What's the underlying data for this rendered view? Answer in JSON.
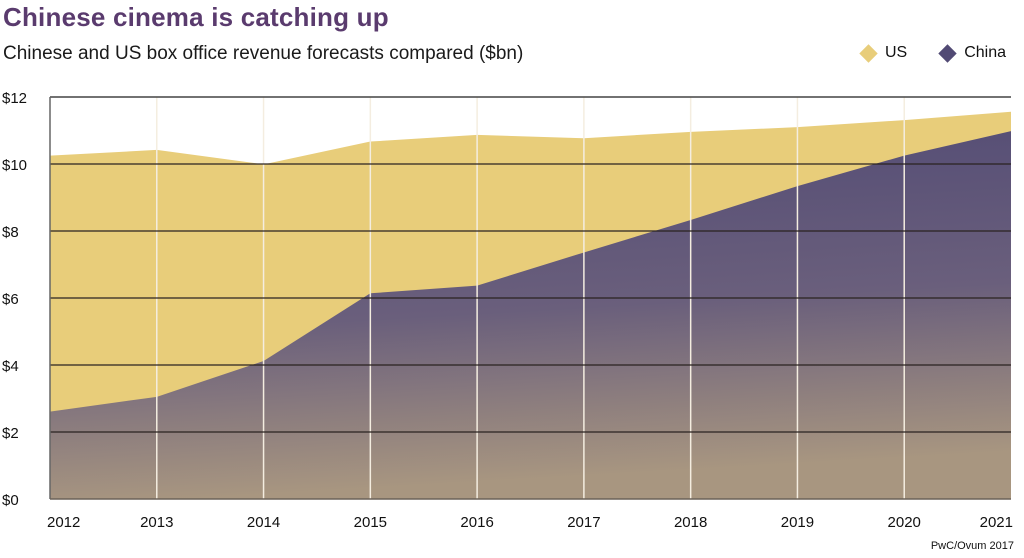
{
  "header": {
    "title": "Chinese cinema is catching up",
    "subtitle": "Chinese and US box office revenue forecasts compared ($bn)"
  },
  "legend": [
    {
      "label": "US",
      "color": "#e8cd7a",
      "icon": "diamond-icon"
    },
    {
      "label": "China",
      "color": "#514a74",
      "icon": "diamond-icon"
    }
  ],
  "source": "PwC/Ovum 2017",
  "chart_data": {
    "type": "area",
    "title": "Chinese cinema is catching up",
    "subtitle": "Chinese and US box office revenue forecasts compared ($bn)",
    "xlabel": "",
    "ylabel": "",
    "x": [
      "2012",
      "2013",
      "2014",
      "2015",
      "2016",
      "2017",
      "2018",
      "2019",
      "2020",
      "2021"
    ],
    "series": [
      {
        "name": "US",
        "color": "#e8cd7a",
        "values": [
          10.25,
          10.42,
          9.99,
          10.67,
          10.87,
          10.77,
          10.96,
          11.1,
          11.31,
          11.56
        ]
      },
      {
        "name": "China",
        "color": "#514a74",
        "color_bottom": "#a59580",
        "values": [
          2.61,
          3.05,
          4.12,
          6.14,
          6.37,
          7.36,
          8.33,
          9.34,
          10.25,
          10.98
        ]
      }
    ],
    "overlapping": true,
    "ylim": [
      0,
      12
    ],
    "yticks": [
      0,
      2,
      4,
      6,
      8,
      10,
      12
    ],
    "ytick_labels": [
      "$0",
      "$2",
      "$4",
      "$6",
      "$8",
      "$10",
      "$12"
    ],
    "grid": true,
    "legend_position": "top-right",
    "source": "PwC/Ovum 2017"
  }
}
